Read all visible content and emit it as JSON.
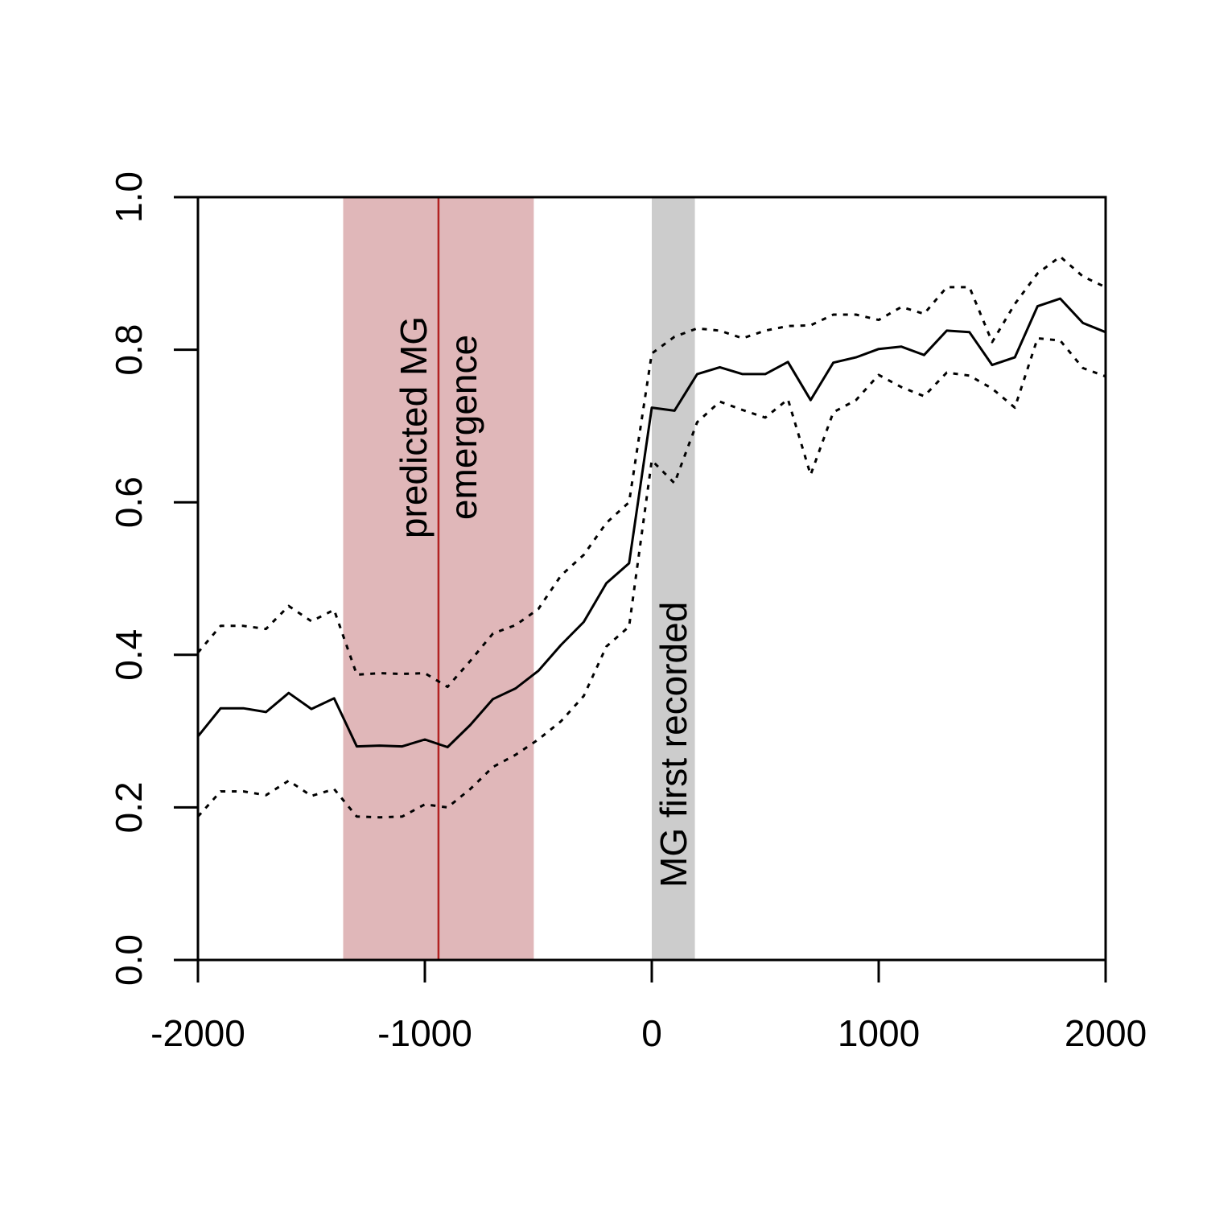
{
  "chart_data": {
    "type": "line",
    "xlabel": "",
    "ylabel": "",
    "xlim": [
      -2000,
      2000
    ],
    "ylim": [
      0,
      1
    ],
    "x_ticks": [
      -2000,
      -1000,
      0,
      1000,
      2000
    ],
    "x_tick_labels": [
      "-2000",
      "-1000",
      "0",
      "1000",
      "2000"
    ],
    "y_ticks": [
      0,
      0.2,
      0.4,
      0.6,
      0.8,
      1.0
    ],
    "y_tick_labels": [
      "0.0",
      "0.2",
      "0.4",
      "0.6",
      "0.8",
      "1.0"
    ],
    "grid": false,
    "x": [
      -2000,
      -1900,
      -1800,
      -1700,
      -1600,
      -1500,
      -1400,
      -1300,
      -1200,
      -1100,
      -1000,
      -900,
      -800,
      -700,
      -600,
      -500,
      -400,
      -300,
      -200,
      -100,
      0,
      100,
      200,
      300,
      400,
      500,
      600,
      700,
      800,
      900,
      1000,
      1100,
      1200,
      1300,
      1400,
      1500,
      1600,
      1700,
      1800,
      1900,
      2000
    ],
    "series": [
      {
        "style": "solid",
        "values": [
          0.293,
          0.33,
          0.33,
          0.325,
          0.35,
          0.329,
          0.343,
          0.28,
          0.281,
          0.28,
          0.289,
          0.279,
          0.308,
          0.342,
          0.356,
          0.379,
          0.413,
          0.443,
          0.494,
          0.52,
          0.724,
          0.72,
          0.768,
          0.777,
          0.768,
          0.768,
          0.784,
          0.734,
          0.783,
          0.79,
          0.801,
          0.804,
          0.793,
          0.825,
          0.823,
          0.78,
          0.79,
          0.857,
          0.867,
          0.835,
          0.823
        ]
      },
      {
        "style": "dotted",
        "values": [
          0.403,
          0.438,
          0.438,
          0.434,
          0.464,
          0.444,
          0.459,
          0.374,
          0.376,
          0.375,
          0.376,
          0.358,
          0.392,
          0.428,
          0.439,
          0.46,
          0.504,
          0.531,
          0.573,
          0.6,
          0.795,
          0.817,
          0.828,
          0.825,
          0.815,
          0.825,
          0.831,
          0.832,
          0.846,
          0.846,
          0.839,
          0.856,
          0.847,
          0.882,
          0.882,
          0.81,
          0.86,
          0.9,
          0.922,
          0.896,
          0.882
        ]
      },
      {
        "style": "dotted",
        "values": [
          0.188,
          0.221,
          0.221,
          0.216,
          0.235,
          0.215,
          0.224,
          0.188,
          0.187,
          0.188,
          0.204,
          0.2,
          0.224,
          0.253,
          0.269,
          0.289,
          0.313,
          0.346,
          0.411,
          0.437,
          0.655,
          0.625,
          0.705,
          0.732,
          0.721,
          0.711,
          0.735,
          0.636,
          0.718,
          0.734,
          0.767,
          0.751,
          0.739,
          0.77,
          0.766,
          0.749,
          0.724,
          0.815,
          0.812,
          0.776,
          0.765
        ]
      }
    ],
    "shaded_regions": [
      {
        "x0": -1360,
        "x1": -520,
        "color": "#e0b7b9"
      },
      {
        "x0": 0,
        "x1": 190,
        "color": "#cccccc"
      }
    ],
    "vline": {
      "x": -940,
      "color": "#b22222"
    },
    "annotations": [
      {
        "lines": [
          "predicted MG",
          "emergence"
        ],
        "x": -940
      },
      {
        "lines": [
          "MG first recorded"
        ],
        "x": 95
      }
    ]
  }
}
